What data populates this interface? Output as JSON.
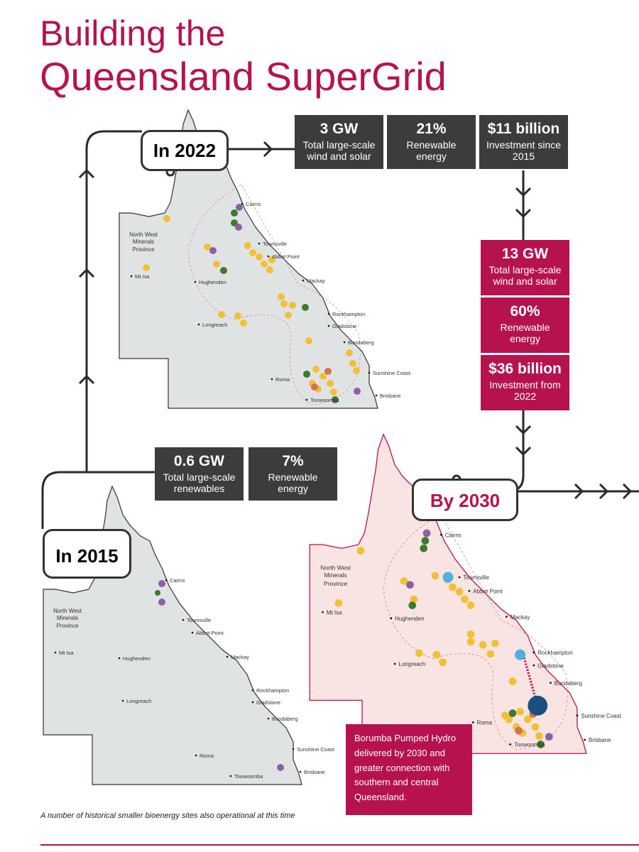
{
  "title": {
    "line1": "Building the",
    "line2": "Queensland SuperGrid"
  },
  "stages": {
    "s2022": "In 2022",
    "s2015": "In 2015",
    "s2030": "By 2030"
  },
  "stats_2022": [
    {
      "value": "3 GW",
      "label": "Total large-scale wind and solar"
    },
    {
      "value": "21%",
      "label": "Renewable energy"
    },
    {
      "value": "$11 billion",
      "label": "Investment since 2015"
    }
  ],
  "stats_2030": [
    {
      "value": "13 GW",
      "label": "Total large-scale wind and solar"
    },
    {
      "value": "60%",
      "label": "Renewable energy"
    },
    {
      "value": "$36 billion",
      "label": "Investment from 2022"
    }
  ],
  "stats_2015": [
    {
      "value": "0.6 GW",
      "label": "Total large-scale renewables"
    },
    {
      "value": "7%",
      "label": "Renewable energy"
    }
  ],
  "places": [
    "Cairns",
    "Townsville",
    "Abbot Point",
    "Mackay",
    "Rockhampton",
    "Gladstone",
    "Bundaberg",
    "Sunshine Coast",
    "Brisbane",
    "Roma",
    "Toowoomba",
    "Longreach",
    "Hughenden",
    "Mt Isa",
    "North West Minerals Province"
  ],
  "callout": "Borumba Pumped Hydro delivered by 2030 and greater connection with southern and central Queensland.",
  "footnote": "A number of historical smaller bioenergy sites also operational at this time"
}
